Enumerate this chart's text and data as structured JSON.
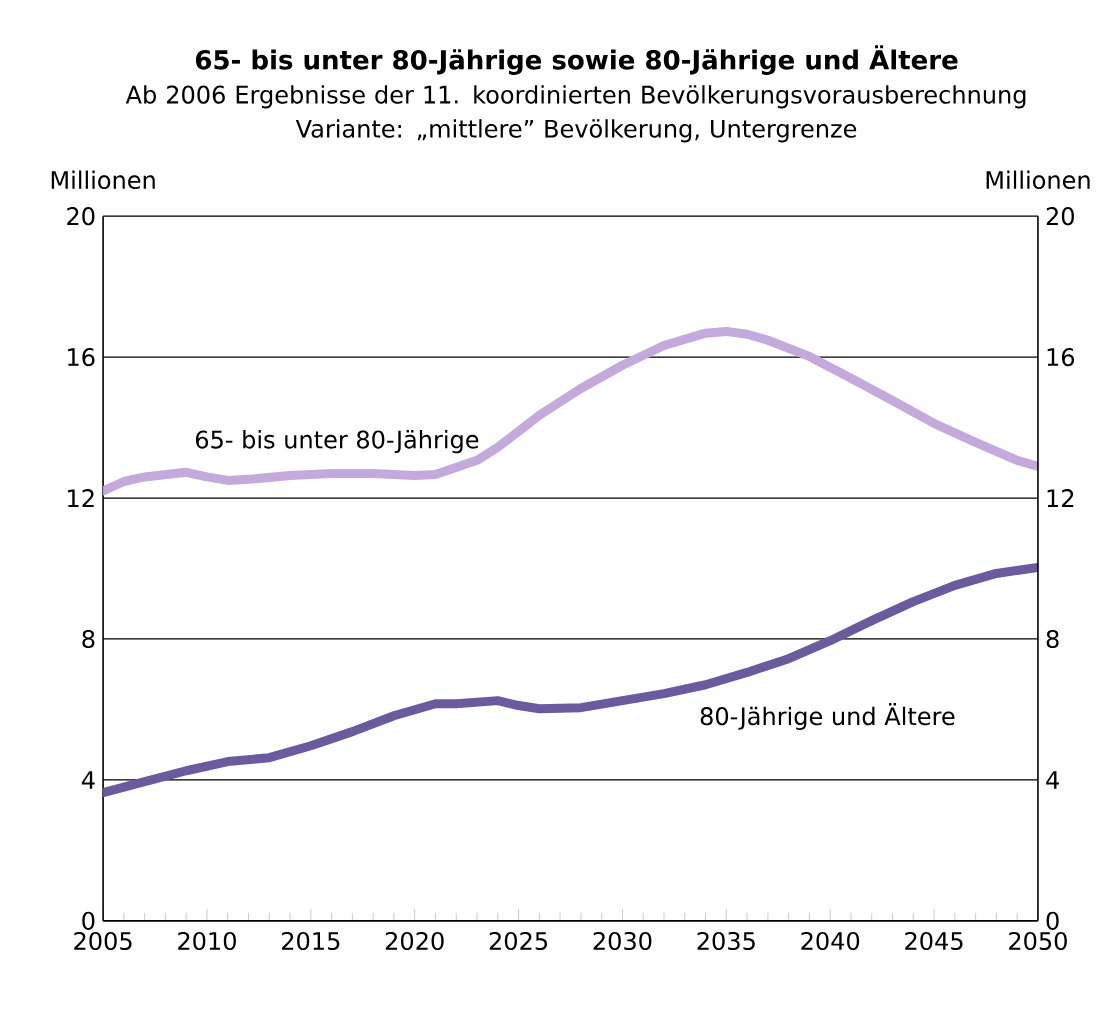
{
  "chart_data": {
    "type": "line",
    "title": "65- bis unter 80-Jährige sowie 80-Jährige und Ältere",
    "subtitle": "Ab 2006 Ergebnisse der 11. koordinierten Bevölkerungsvorausberechnung Variante: „mittlere” Bevölkerung, Untergrenze",
    "ylabel": "Millionen",
    "y2label": "Millionen",
    "xlim": [
      2005,
      2050
    ],
    "xticks": [
      2005,
      2010,
      2015,
      2020,
      2025,
      2030,
      2035,
      2040,
      2045,
      2050
    ],
    "ylim": [
      0,
      20
    ],
    "yticks": [
      0,
      4,
      8,
      12,
      16,
      20
    ],
    "y2lim": [
      0,
      20
    ],
    "y2ticks": [
      0,
      4,
      8,
      12,
      16,
      20
    ],
    "grid": "y",
    "marker": "none",
    "line_style": "solid",
    "series": [
      {
        "name": "65- bis unter 80-Jährige",
        "color": "#c3a9dc",
        "x": [
          2005,
          2006,
          2007,
          2009,
          2010,
          2011,
          2012,
          2014,
          2016,
          2018,
          2020,
          2021,
          2023,
          2024,
          2026,
          2028,
          2030,
          2032,
          2034,
          2035,
          2036,
          2037,
          2039,
          2041,
          2043,
          2045,
          2047,
          2049,
          2050
        ],
        "values": [
          12.2,
          12.47,
          12.6,
          12.73,
          12.6,
          12.5,
          12.53,
          12.64,
          12.7,
          12.7,
          12.64,
          12.67,
          13.07,
          13.44,
          14.35,
          15.11,
          15.77,
          16.33,
          16.68,
          16.73,
          16.65,
          16.48,
          16.02,
          15.4,
          14.77,
          14.12,
          13.58,
          13.07,
          12.9
        ]
      },
      {
        "name": "80-Jährige und Ältere",
        "color": "#6b5a9e",
        "x": [
          2005,
          2007,
          2009,
          2011,
          2013,
          2015,
          2017,
          2019,
          2021,
          2022,
          2024,
          2025,
          2026,
          2028,
          2030,
          2032,
          2034,
          2036,
          2038,
          2040,
          2042,
          2044,
          2046,
          2048,
          2050
        ],
        "values": [
          3.64,
          3.95,
          4.26,
          4.52,
          4.63,
          4.97,
          5.37,
          5.82,
          6.16,
          6.16,
          6.25,
          6.11,
          6.02,
          6.05,
          6.25,
          6.45,
          6.7,
          7.05,
          7.44,
          7.95,
          8.52,
          9.06,
          9.52,
          9.86,
          10.03
        ]
      }
    ]
  }
}
